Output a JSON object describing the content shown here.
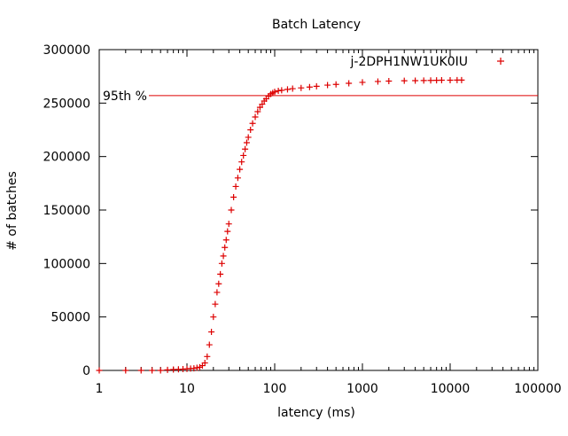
{
  "chart_data": {
    "type": "scatter",
    "title": "Batch Latency",
    "xlabel": "latency (ms)",
    "ylabel": "# of batches",
    "xscale": "log",
    "xlim": [
      1,
      100000
    ],
    "ylim": [
      0,
      300000
    ],
    "xticks": [
      {
        "value": 1,
        "label": "1"
      },
      {
        "value": 10,
        "label": "10"
      },
      {
        "value": 100,
        "label": "100"
      },
      {
        "value": 1000,
        "label": "1000"
      },
      {
        "value": 10000,
        "label": "10000"
      },
      {
        "value": 100000,
        "label": "100000"
      }
    ],
    "yticks": [
      {
        "value": 0,
        "label": "0"
      },
      {
        "value": 50000,
        "label": "50000"
      },
      {
        "value": 100000,
        "label": "100000"
      },
      {
        "value": 150000,
        "label": "150000"
      },
      {
        "value": 200000,
        "label": "200000"
      },
      {
        "value": 250000,
        "label": "250000"
      },
      {
        "value": 300000,
        "label": "300000"
      }
    ],
    "grid": false,
    "legend": "top-right",
    "colors": {
      "series": "#dd0000",
      "reference_line": "#dd0000",
      "axis": "#000000"
    },
    "reference_line": {
      "y": 257000,
      "label": "95th %"
    },
    "series": [
      {
        "name": "j-2DPH1NW1UK0IU",
        "marker": "plus",
        "x": [
          1,
          2,
          3,
          4,
          5,
          6,
          7,
          8,
          9,
          10,
          11,
          12,
          13,
          14,
          15,
          16,
          17,
          18,
          19,
          20,
          21,
          22,
          23,
          24,
          25,
          26,
          27,
          28,
          29,
          30,
          32,
          34,
          36,
          38,
          40,
          42,
          44,
          46,
          48,
          50,
          53,
          56,
          60,
          64,
          68,
          72,
          76,
          80,
          85,
          90,
          95,
          100,
          110,
          120,
          140,
          160,
          200,
          250,
          300,
          400,
          500,
          700,
          1000,
          1500,
          2000,
          3000,
          4000,
          5000,
          6000,
          7000,
          8000,
          10000,
          12000,
          13500
        ],
        "y": [
          0,
          0,
          0,
          0,
          0,
          500,
          800,
          1000,
          1200,
          1500,
          1800,
          2000,
          2500,
          3000,
          4500,
          7000,
          13000,
          24000,
          36000,
          50000,
          62000,
          73000,
          81000,
          90000,
          100000,
          107000,
          115000,
          122000,
          130000,
          137000,
          150000,
          162000,
          172000,
          180000,
          188000,
          195000,
          201000,
          207000,
          213000,
          218000,
          225000,
          231000,
          237000,
          242000,
          246000,
          249000,
          252000,
          254000,
          256500,
          258500,
          259500,
          260500,
          261500,
          262000,
          262800,
          263500,
          264200,
          265000,
          265700,
          266800,
          267500,
          268500,
          269400,
          270200,
          270600,
          270900,
          271000,
          271100,
          271200,
          271300,
          271400,
          271400,
          271500,
          271500
        ]
      }
    ]
  }
}
